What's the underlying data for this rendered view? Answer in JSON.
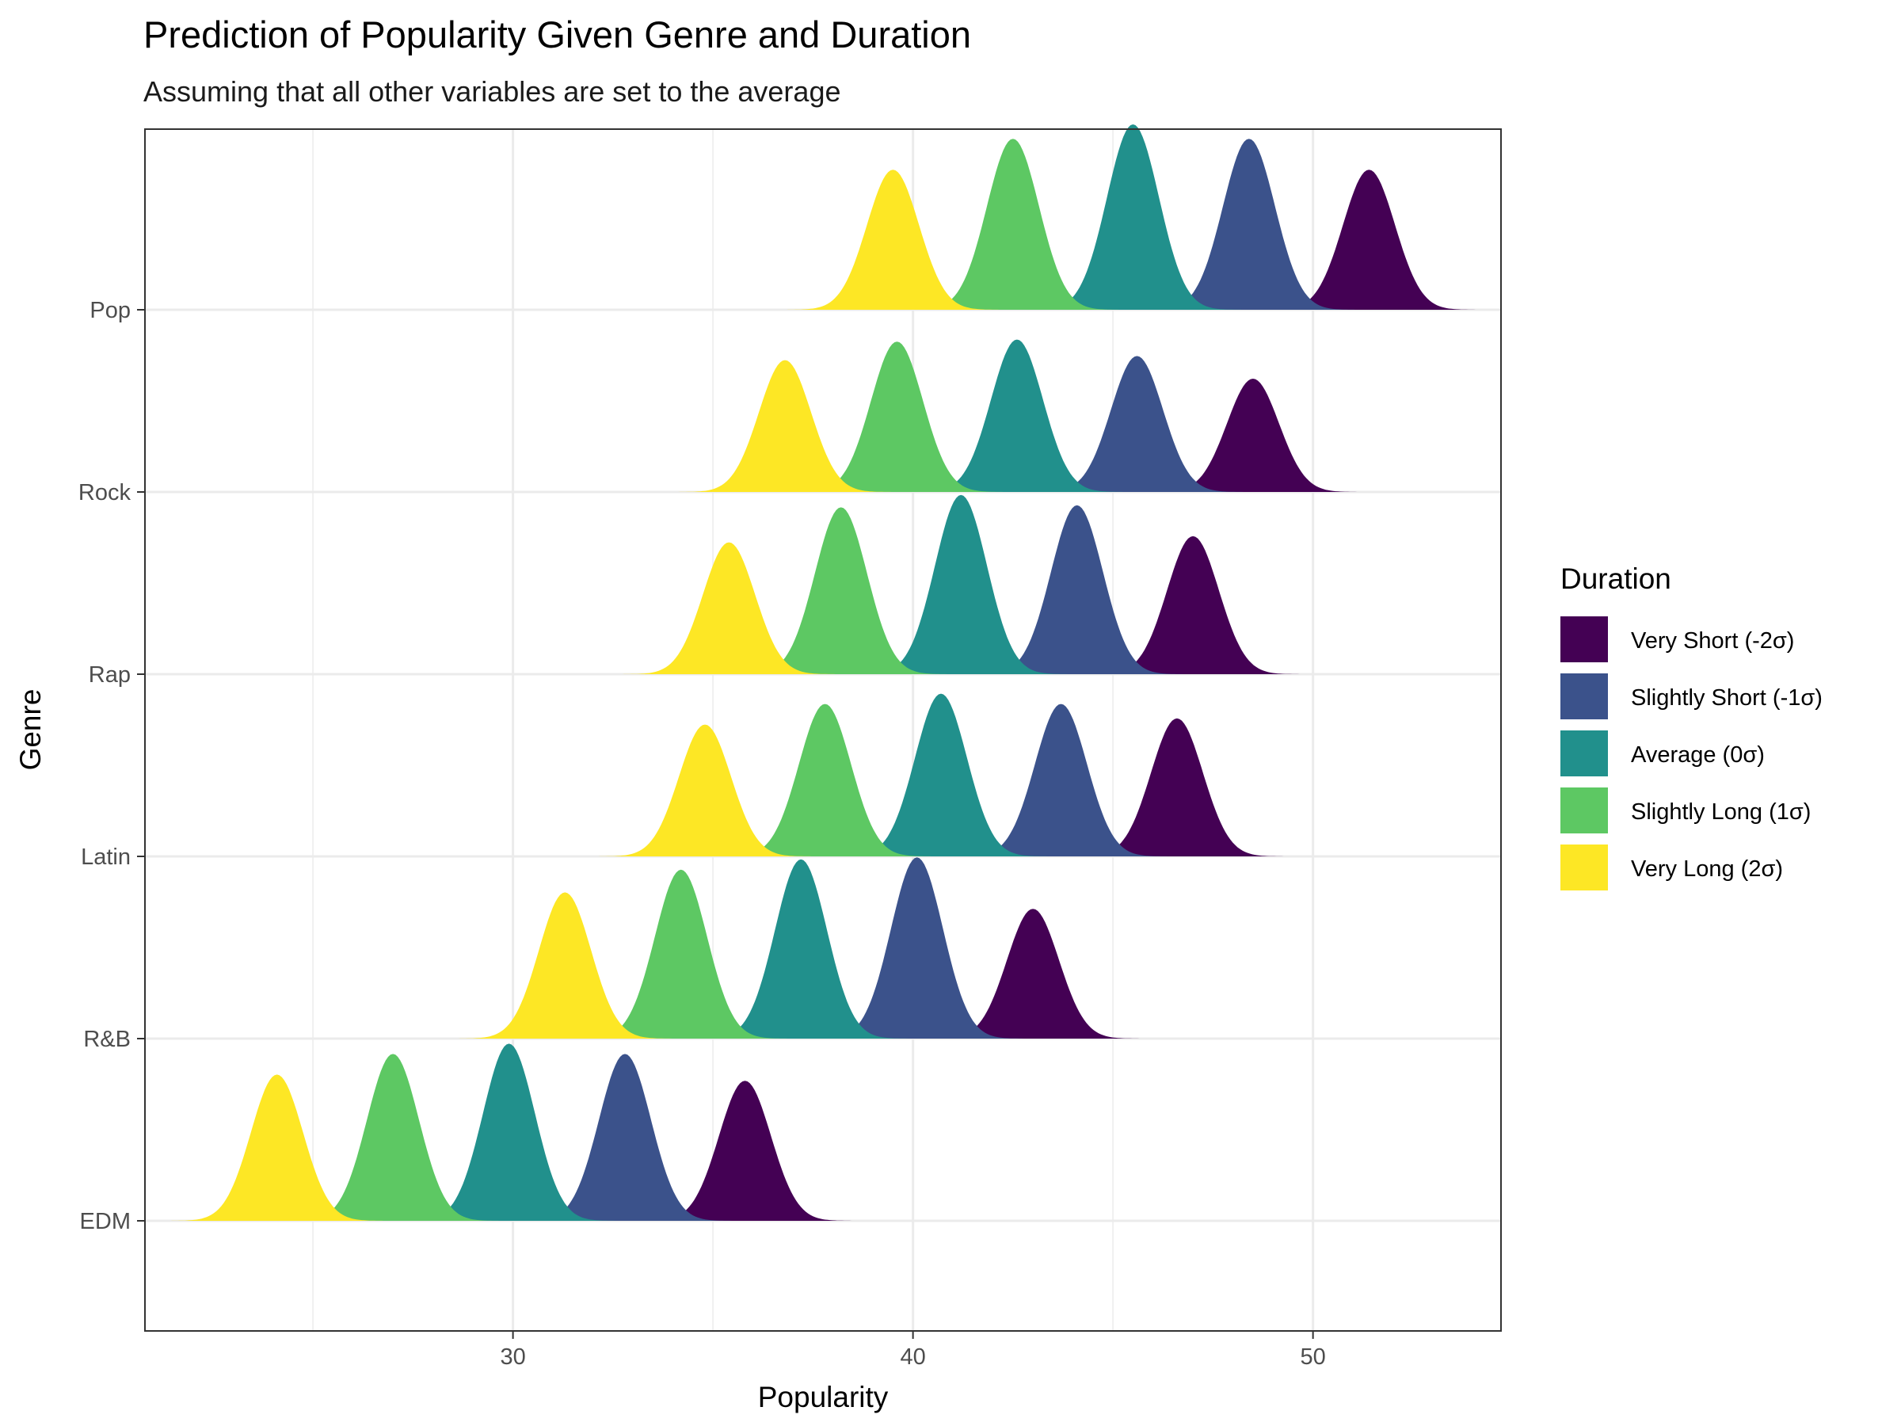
{
  "chart_data": {
    "type": "ridgeline",
    "title": "Prediction of Popularity Given Genre and Duration",
    "subtitle": "Assuming that all other variables are set to the average",
    "xlabel": "Popularity",
    "ylabel": "Genre",
    "xlim": [
      20.8,
      54.7
    ],
    "x_ticks": [
      30,
      40,
      50
    ],
    "x_tick_labels": [
      "30",
      "40",
      "50"
    ],
    "categories": [
      "EDM",
      "R&B",
      "Latin",
      "Rap",
      "Rock",
      "Pop"
    ],
    "grid": true,
    "legend": {
      "title": "Duration",
      "position": "right"
    },
    "series": [
      {
        "name": "Very Short (-2σ)",
        "color": "#440154",
        "peaks": {
          "EDM": 35.8,
          "R&B": 43.0,
          "Latin": 46.6,
          "Rap": 47.0,
          "Rock": 48.5,
          "Pop": 51.4
        },
        "heights": {
          "EDM": 0.68,
          "R&B": 0.63,
          "Latin": 0.67,
          "Rap": 0.67,
          "Rock": 0.55,
          "Pop": 0.68
        }
      },
      {
        "name": "Slightly Short (-1σ)",
        "color": "#3B528B",
        "peaks": {
          "EDM": 32.8,
          "R&B": 40.1,
          "Latin": 43.7,
          "Rap": 44.1,
          "Rock": 45.6,
          "Pop": 48.4
        },
        "heights": {
          "EDM": 0.81,
          "R&B": 0.88,
          "Latin": 0.74,
          "Rap": 0.82,
          "Rock": 0.66,
          "Pop": 0.83
        }
      },
      {
        "name": "Average (0σ)",
        "color": "#21908C",
        "peaks": {
          "EDM": 29.9,
          "R&B": 37.2,
          "Latin": 40.7,
          "Rap": 41.2,
          "Rock": 42.6,
          "Pop": 45.5
        },
        "heights": {
          "EDM": 0.86,
          "R&B": 0.87,
          "Latin": 0.79,
          "Rap": 0.87,
          "Rock": 0.74,
          "Pop": 0.9
        }
      },
      {
        "name": "Slightly Long (1σ)",
        "color": "#5DC863",
        "peaks": {
          "EDM": 27.0,
          "R&B": 34.2,
          "Latin": 37.8,
          "Rap": 38.2,
          "Rock": 39.6,
          "Pop": 42.5
        },
        "heights": {
          "EDM": 0.81,
          "R&B": 0.82,
          "Latin": 0.74,
          "Rap": 0.81,
          "Rock": 0.73,
          "Pop": 0.83
        }
      },
      {
        "name": "Very Long (2σ)",
        "color": "#FDE725",
        "peaks": {
          "EDM": 24.1,
          "R&B": 31.3,
          "Latin": 34.8,
          "Rap": 35.4,
          "Rock": 36.8,
          "Pop": 39.5
        },
        "heights": {
          "EDM": 0.71,
          "R&B": 0.71,
          "Latin": 0.64,
          "Rap": 0.64,
          "Rock": 0.64,
          "Pop": 0.68
        }
      }
    ]
  }
}
